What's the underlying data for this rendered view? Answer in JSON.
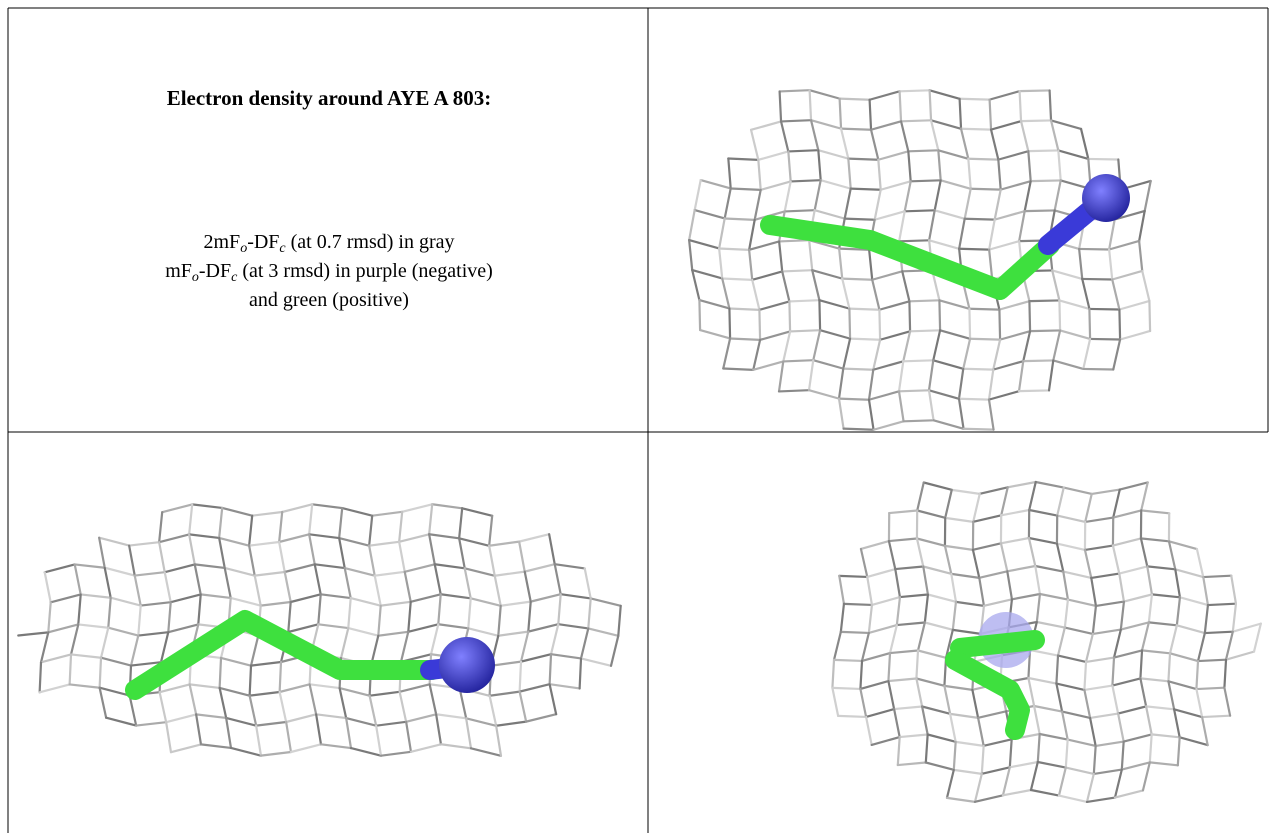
{
  "title": "Electron density around AYE A 803:",
  "caption": [
    [
      {
        "text": "2mF"
      },
      {
        "sub": "o"
      },
      {
        "text": "-DF"
      },
      {
        "sub": "c"
      },
      {
        "text": " (at 0.7 rmsd) in gray"
      }
    ],
    [
      {
        "text": "mF"
      },
      {
        "sub": "o"
      },
      {
        "text": "-DF"
      },
      {
        "sub": "c"
      },
      {
        "text": " (at 3 rmsd) in purple (negative)"
      }
    ],
    [
      {
        "text": "and green (positive)"
      }
    ]
  ]
}
